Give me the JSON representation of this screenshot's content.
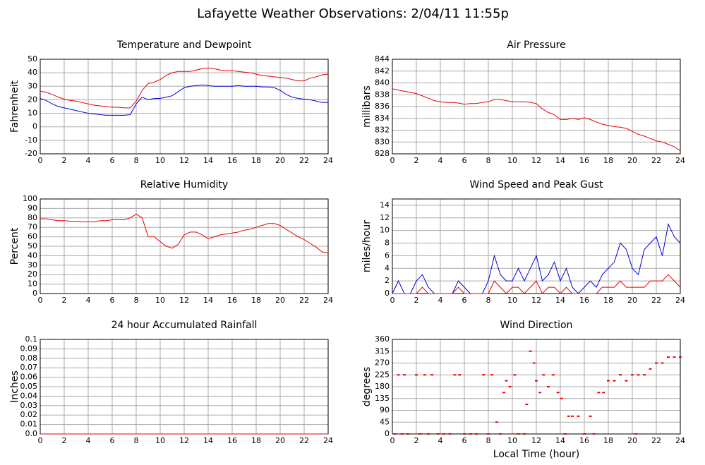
{
  "title": "Lafayette Weather Observations: 2/04/11 11:55p",
  "chart_data": [
    {
      "type": "line",
      "title": "Temperature and Dewpoint",
      "ylabel": "Fahrenheit",
      "x": [
        0,
        0.5,
        1,
        1.5,
        2,
        2.5,
        3,
        3.5,
        4,
        4.5,
        5,
        5.5,
        6,
        6.5,
        7,
        7.5,
        8,
        8.5,
        9,
        9.5,
        10,
        10.5,
        11,
        11.5,
        12,
        12.5,
        13,
        13.5,
        14,
        14.5,
        15,
        15.5,
        16,
        16.5,
        17,
        17.5,
        18,
        18.5,
        19,
        19.5,
        20,
        20.5,
        21,
        21.5,
        22,
        22.5,
        23,
        23.5,
        24
      ],
      "series": [
        {
          "color": "#ee0000",
          "values": [
            26.5,
            25.5,
            24,
            22,
            20.5,
            19.5,
            19,
            18,
            17,
            16,
            15.5,
            15,
            14.5,
            14.5,
            14,
            14,
            19,
            27,
            32,
            33,
            35,
            38,
            40,
            41,
            41,
            41,
            42,
            43,
            43.5,
            43,
            42,
            41.5,
            41.5,
            41,
            40.5,
            40,
            39,
            38,
            37.5,
            37,
            36.5,
            36,
            35,
            34,
            34,
            36,
            37,
            38.5,
            39
          ]
        },
        {
          "color": "#0000dd",
          "values": [
            21,
            19.5,
            17,
            15,
            14,
            13,
            12,
            11,
            10,
            9.5,
            9,
            8.5,
            8.5,
            8.5,
            8.5,
            9,
            17,
            22,
            20,
            21,
            21,
            22,
            23,
            26,
            29,
            30,
            30.5,
            31,
            30.5,
            30,
            30,
            30,
            30,
            30.5,
            30,
            30,
            30,
            29.5,
            29.5,
            29,
            27,
            24,
            22,
            21,
            20.5,
            20,
            19,
            18,
            18
          ]
        }
      ],
      "xlim": [
        0,
        24
      ],
      "xticks": [
        0,
        2,
        4,
        6,
        8,
        10,
        12,
        14,
        16,
        18,
        20,
        22,
        24
      ],
      "ylim": [
        -20,
        50
      ],
      "yticks": [
        -20,
        -10,
        0,
        10,
        20,
        30,
        40,
        50
      ],
      "grid": true
    },
    {
      "type": "line",
      "title": "Air Pressure",
      "ylabel": "millibars",
      "x": [
        0,
        0.5,
        1,
        1.5,
        2,
        2.5,
        3,
        3.5,
        4,
        4.5,
        5,
        5.5,
        6,
        6.5,
        7,
        7.5,
        8,
        8.5,
        9,
        9.5,
        10,
        10.5,
        11,
        11.5,
        12,
        12.5,
        13,
        13.5,
        14,
        14.5,
        15,
        15.5,
        16,
        16.5,
        17,
        17.5,
        18,
        18.5,
        19,
        19.5,
        20,
        20.5,
        21,
        21.5,
        22,
        22.5,
        23,
        23.5,
        24
      ],
      "series": [
        {
          "color": "#ee0000",
          "values": [
            839,
            838.8,
            838.6,
            838.4,
            838.2,
            837.8,
            837.4,
            837,
            836.8,
            836.7,
            836.7,
            836.6,
            836.4,
            836.5,
            836.5,
            836.7,
            836.8,
            837.2,
            837.2,
            837,
            836.8,
            836.8,
            836.8,
            836.7,
            836.5,
            835.6,
            835,
            834.6,
            833.8,
            833.8,
            834,
            833.8,
            834.1,
            833.8,
            833.4,
            833,
            832.8,
            832.6,
            832.5,
            832.3,
            831.8,
            831.3,
            831,
            830.6,
            830.2,
            830,
            829.6,
            829.2,
            828.5
          ]
        }
      ],
      "xlim": [
        0,
        24
      ],
      "xticks": [
        0,
        2,
        4,
        6,
        8,
        10,
        12,
        14,
        16,
        18,
        20,
        22,
        24
      ],
      "ylim": [
        828,
        844
      ],
      "yticks": [
        828,
        830,
        832,
        834,
        836,
        838,
        840,
        842,
        844
      ],
      "grid": true
    },
    {
      "type": "line",
      "title": "Relative Humidity",
      "ylabel": "Percent",
      "x": [
        0,
        0.5,
        1,
        1.5,
        2,
        2.5,
        3,
        3.5,
        4,
        4.5,
        5,
        5.5,
        6,
        6.5,
        7,
        7.5,
        8,
        8.5,
        9,
        9.5,
        10,
        10.5,
        11,
        11.5,
        12,
        12.5,
        13,
        13.5,
        14,
        14.5,
        15,
        15.5,
        16,
        16.5,
        17,
        17.5,
        18,
        18.5,
        19,
        19.5,
        20,
        20.5,
        21,
        21.5,
        22,
        22.5,
        23,
        23.5,
        24
      ],
      "series": [
        {
          "color": "#ee0000",
          "values": [
            79,
            79,
            78,
            77,
            77,
            76.5,
            76.5,
            76,
            76,
            76,
            77,
            77,
            78,
            78,
            78,
            80,
            84,
            80,
            60,
            60,
            55,
            50,
            48,
            52,
            62,
            65,
            65,
            62,
            58,
            60,
            62,
            63,
            64,
            65,
            67,
            68,
            70,
            72,
            74,
            74,
            72,
            68,
            64,
            60,
            57,
            53,
            49,
            44,
            43
          ]
        }
      ],
      "xlim": [
        0,
        24
      ],
      "xticks": [
        0,
        2,
        4,
        6,
        8,
        10,
        12,
        14,
        16,
        18,
        20,
        22,
        24
      ],
      "ylim": [
        0,
        100
      ],
      "yticks": [
        0,
        10,
        20,
        30,
        40,
        50,
        60,
        70,
        80,
        90,
        100
      ],
      "grid": true
    },
    {
      "type": "line",
      "title": "Wind Speed and Peak Gust",
      "ylabel": "miles/hour",
      "x": [
        0,
        0.5,
        1,
        1.5,
        2,
        2.5,
        3,
        3.5,
        4,
        4.5,
        5,
        5.5,
        6,
        6.5,
        7,
        7.5,
        8,
        8.5,
        9,
        9.5,
        10,
        10.5,
        11,
        11.5,
        12,
        12.5,
        13,
        13.5,
        14,
        14.5,
        15,
        15.5,
        16,
        16.5,
        17,
        17.5,
        18,
        18.5,
        19,
        19.5,
        20,
        20.5,
        21,
        21.5,
        22,
        22.5,
        23,
        23.5,
        24
      ],
      "series": [
        {
          "color": "#0000dd",
          "values": [
            0,
            2,
            0,
            0,
            2,
            3,
            1,
            0,
            0,
            0,
            0,
            2,
            1,
            0,
            0,
            0,
            2,
            6,
            3,
            2,
            2,
            4,
            2,
            4,
            6,
            2,
            3,
            5,
            2,
            4,
            1,
            0,
            1,
            2,
            1,
            3,
            4,
            5,
            8,
            7,
            4,
            3,
            7,
            8,
            9,
            6,
            11,
            9,
            8
          ]
        },
        {
          "color": "#ee0000",
          "values": [
            0,
            0,
            0,
            0,
            0,
            1,
            0,
            0,
            0,
            0,
            0,
            1,
            0,
            0,
            0,
            0,
            0,
            2,
            1,
            0,
            1,
            1,
            0,
            1,
            2,
            0,
            1,
            1,
            0,
            1,
            0,
            0,
            0,
            0,
            0,
            1,
            1,
            1,
            2,
            1,
            1,
            1,
            1,
            2,
            2,
            2,
            3,
            2,
            1
          ]
        }
      ],
      "xlim": [
        0,
        24
      ],
      "xticks": [
        0,
        2,
        4,
        6,
        8,
        10,
        12,
        14,
        16,
        18,
        20,
        22,
        24
      ],
      "ylim": [
        0,
        15
      ],
      "yticks": [
        0,
        2,
        4,
        6,
        8,
        10,
        12,
        14
      ],
      "grid": true
    },
    {
      "type": "line",
      "title": "24 hour Accumulated Rainfall",
      "ylabel": "Inches",
      "x": [
        0,
        24
      ],
      "series": [
        {
          "color": "#ee0000",
          "values": [
            0,
            0
          ]
        }
      ],
      "xlim": [
        0,
        24
      ],
      "xticks": [
        0,
        2,
        4,
        6,
        8,
        10,
        12,
        14,
        16,
        18,
        20,
        22,
        24
      ],
      "ylim": [
        0,
        0.1
      ],
      "yticks": [
        {
          "value": 0,
          "label": "0.0"
        },
        0.01,
        0.02,
        0.03,
        0.04,
        0.05,
        0.06,
        0.07,
        0.08,
        0.09,
        0.1
      ],
      "grid": true
    },
    {
      "type": "scatter",
      "title": "Wind Direction",
      "ylabel": "degrees",
      "xlabel": "Local Time (hour)",
      "x": [
        0.2,
        0.5,
        0.8,
        1,
        1.3,
        2,
        2.3,
        2.7,
        3,
        3.3,
        3.8,
        4.3,
        4.8,
        5.2,
        5.6,
        6,
        6.5,
        7,
        7.6,
        8,
        8.3,
        8.7,
        9,
        9.3,
        9.5,
        9.8,
        10.2,
        10.5,
        11,
        11.2,
        11.5,
        11.8,
        12,
        12.3,
        12.6,
        13,
        13.4,
        13.8,
        14.1,
        14.4,
        14.7,
        15,
        15.5,
        16,
        16.5,
        16.8,
        17.2,
        17.6,
        18,
        18.5,
        19,
        19.5,
        20,
        20.3,
        20.5,
        21,
        21.5,
        22,
        22.5,
        23,
        23.5,
        24
      ],
      "values": [
        0,
        225,
        0,
        225,
        0,
        225,
        0,
        225,
        0,
        225,
        0,
        0,
        0,
        225,
        225,
        0,
        0,
        0,
        225,
        0,
        225,
        45,
        0,
        157.5,
        202.5,
        180,
        225,
        0,
        0,
        112.5,
        315,
        270,
        202.5,
        157.5,
        225,
        180,
        225,
        157.5,
        135,
        0,
        67.5,
        67.5,
        67.5,
        0,
        67.5,
        0,
        157.5,
        157.5,
        202.5,
        202.5,
        225,
        202.5,
        225,
        0,
        225,
        225,
        247.5,
        270,
        270,
        292.5,
        292.5,
        292.5
      ],
      "color": "#ee0000",
      "xlim": [
        0,
        24
      ],
      "xticks": [
        0,
        2,
        4,
        6,
        8,
        10,
        12,
        14,
        16,
        18,
        20,
        22,
        24
      ],
      "ylim": [
        0,
        360
      ],
      "yticks": [
        0,
        45,
        90,
        135,
        180,
        225,
        270,
        315,
        360
      ],
      "grid": true
    }
  ]
}
